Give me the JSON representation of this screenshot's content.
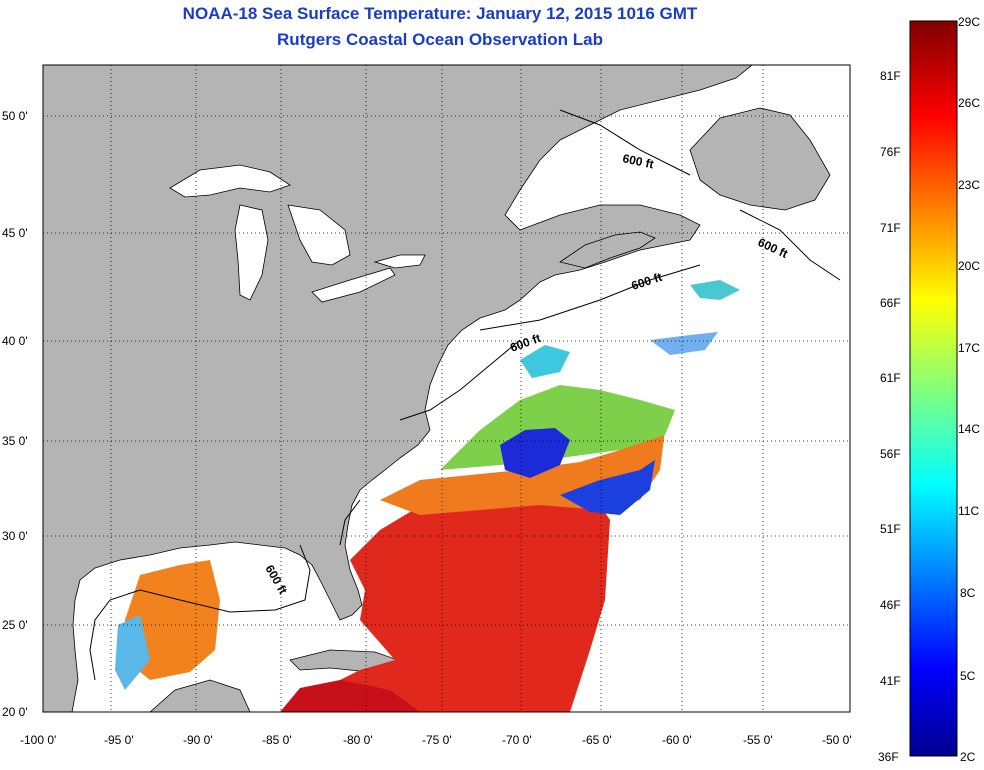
{
  "header": {
    "title": "NOAA-18 Sea Surface Temperature:  January 12, 2015 1016 GMT",
    "subtitle": "Rutgers Coastal Ocean Observation Lab"
  },
  "map": {
    "lon_ticks": [
      "-100 0'",
      "-95 0'",
      "-90 0'",
      "-85 0'",
      "-80 0'",
      "-75 0'",
      "-70 0'",
      "-65 0'",
      "-60 0'",
      "-55 0'",
      "-50 0'"
    ],
    "lat_ticks": [
      "20 0'",
      "25 0'",
      "30 0'",
      "35 0'",
      "40 0'",
      "45 0'",
      "50 0'"
    ],
    "depth_labels": [
      "600 ft",
      "600 ft",
      "600 ft",
      "600 ft",
      "600 ft"
    ],
    "land_color": "#b4b4b4",
    "cloud_color": "#ffffff"
  },
  "colorbar": {
    "f_labels": [
      "36F",
      "41F",
      "46F",
      "51F",
      "56F",
      "61F",
      "66F",
      "71F",
      "76F",
      "81F"
    ],
    "c_labels": [
      "2C",
      "5C",
      "8C",
      "11C",
      "14C",
      "17C",
      "20C",
      "23C",
      "26C",
      "29C"
    ]
  }
}
